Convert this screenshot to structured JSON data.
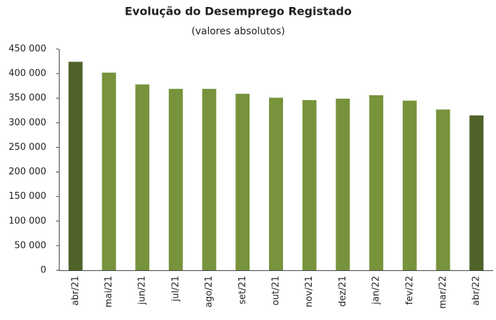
{
  "chart_data": {
    "type": "bar",
    "title": "Evolução do Desemprego Registado",
    "subtitle": "(valores absolutos)",
    "categories": [
      "abr/21",
      "mai/21",
      "jun/21",
      "jul/21",
      "ago/21",
      "set/21",
      "out/21",
      "nov/21",
      "dez/21",
      "jan/22",
      "fev/22",
      "mar/22",
      "abr/22"
    ],
    "values": [
      424000,
      402000,
      378000,
      369000,
      369000,
      359000,
      351000,
      346000,
      349000,
      356000,
      345000,
      327000,
      315000
    ],
    "colors": [
      "#4f6228",
      "#77933c",
      "#77933c",
      "#77933c",
      "#77933c",
      "#77933c",
      "#77933c",
      "#77933c",
      "#77933c",
      "#77933c",
      "#77933c",
      "#77933c",
      "#4f6228"
    ],
    "ylim": [
      0,
      450000
    ],
    "yticks": [
      0,
      {
        "value": 50000,
        "label": "50 000"
      },
      {
        "value": 100000,
        "label": "100 000"
      },
      {
        "value": 150000,
        "label": "150 000"
      },
      {
        "value": 200000,
        "label": "200 000"
      },
      {
        "value": 250000,
        "label": "250 000"
      },
      {
        "value": 300000,
        "label": "300 000"
      },
      {
        "value": 350000,
        "label": "350 000"
      },
      {
        "value": 400000,
        "label": "400 000"
      },
      {
        "value": 450000,
        "label": "450 000"
      }
    ],
    "grid": false
  }
}
